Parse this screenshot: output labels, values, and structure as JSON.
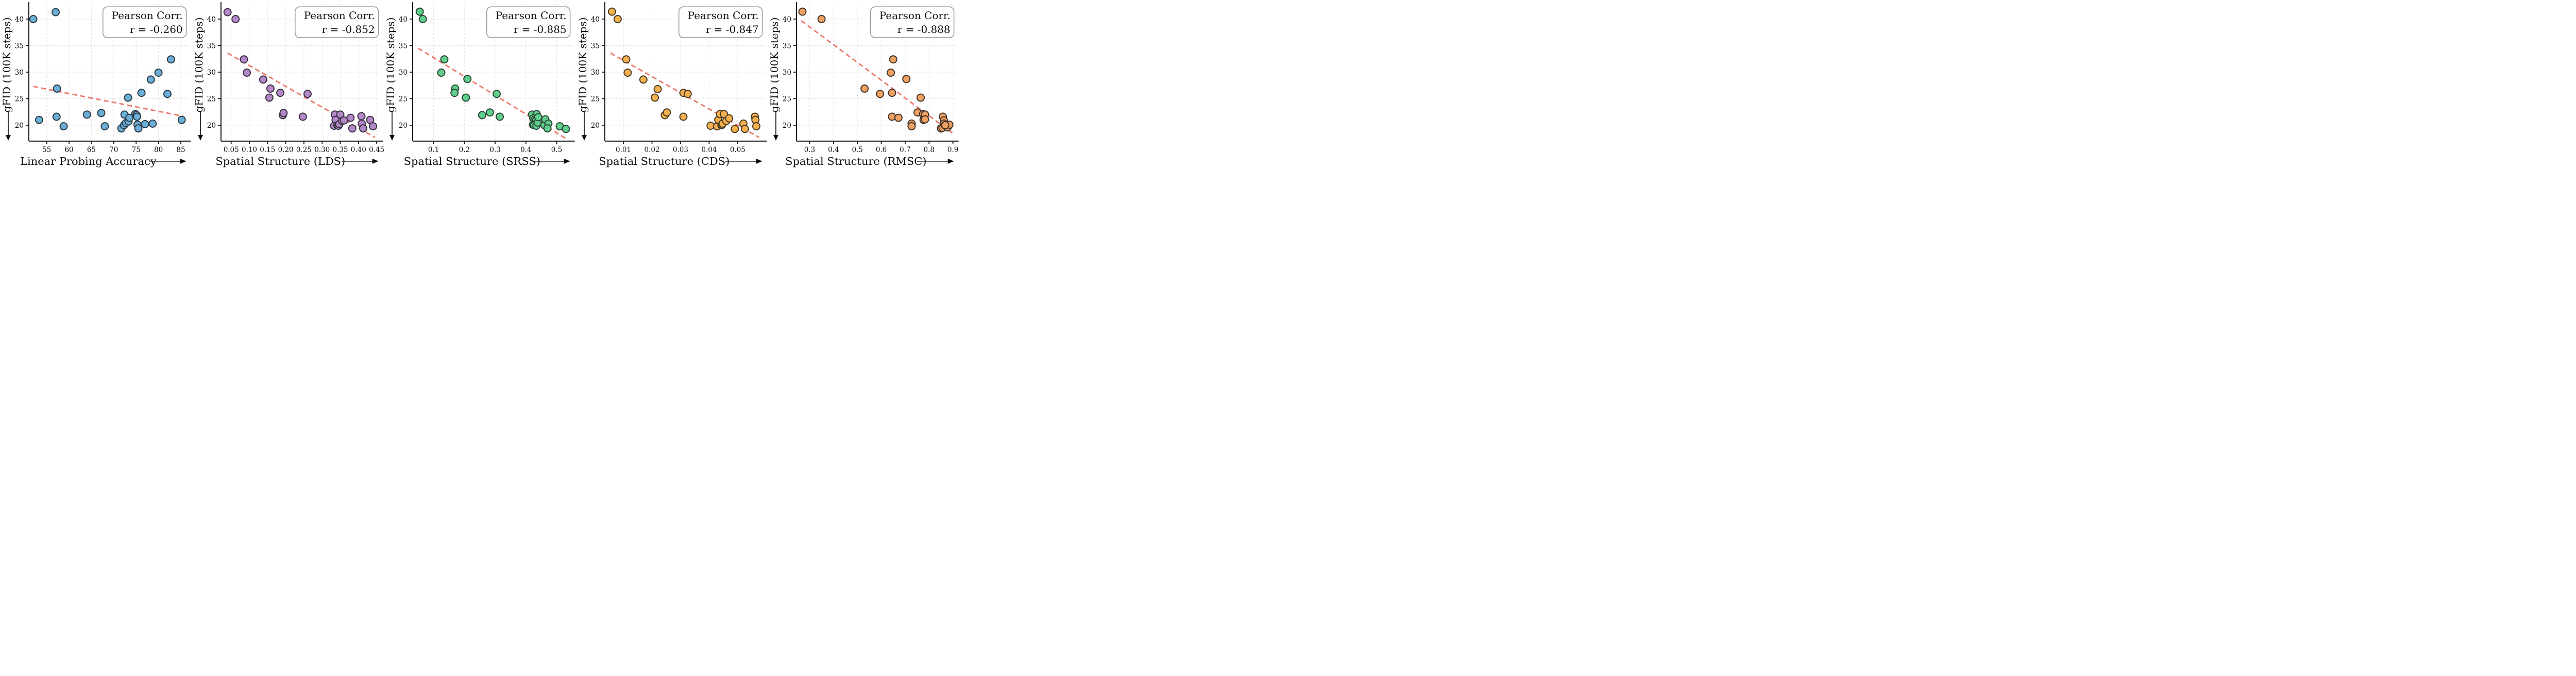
{
  "figure": {
    "description": "Five scatter panels correlating gFID (100K steps) with representation metrics",
    "trend_color": "#ED796B",
    "grid_color": "#E2E2E2"
  },
  "chart_data": [
    {
      "type": "scatter",
      "key": "linear-probing",
      "xlabel": "Linear Probing Accuracy",
      "ylabel": "gFID (100K steps)",
      "annotation": {
        "line1": "Pearson Corr.",
        "line2": "r = -0.260",
        "r": -0.26
      },
      "x_ticks": [
        55,
        60,
        65,
        70,
        75,
        80,
        85
      ],
      "x_tick_labels": [
        "55",
        "60",
        "65",
        "70",
        "75",
        "80",
        "85"
      ],
      "y_ticks": [
        20,
        25,
        30,
        35,
        40
      ],
      "y_tick_labels": [
        "20",
        "25",
        "30",
        "35",
        "40"
      ],
      "xlim": [
        51,
        86.8
      ],
      "ylim": [
        17,
        42.8
      ],
      "grid": true,
      "legend_position": "upper right",
      "marker_color": "#6BAED6",
      "marker_edge": "#2B3A45",
      "trend": {
        "x1": 52.0,
        "y1": 27.3,
        "x2": 85.5,
        "y2": 21.7,
        "color": "#ED796B"
      },
      "points": [
        [
          52.0,
          40.0
        ],
        [
          57.0,
          41.3
        ],
        [
          53.3,
          21.0
        ],
        [
          57.3,
          26.9
        ],
        [
          57.2,
          21.6
        ],
        [
          58.8,
          19.8
        ],
        [
          64.0,
          22.0
        ],
        [
          67.2,
          22.3
        ],
        [
          68.0,
          19.8
        ],
        [
          71.7,
          19.4
        ],
        [
          72.3,
          20.0
        ],
        [
          72.4,
          22.0
        ],
        [
          72.7,
          20.4
        ],
        [
          73.2,
          25.2
        ],
        [
          73.3,
          20.7
        ],
        [
          73.5,
          21.4
        ],
        [
          74.8,
          22.1
        ],
        [
          75.1,
          21.9
        ],
        [
          75.2,
          21.6
        ],
        [
          75.3,
          20.1
        ],
        [
          75.5,
          19.4
        ],
        [
          76.2,
          26.1
        ],
        [
          77.0,
          20.2
        ],
        [
          78.3,
          28.6
        ],
        [
          78.7,
          20.3
        ],
        [
          80.0,
          29.9
        ],
        [
          82.0,
          25.9
        ],
        [
          82.8,
          32.4
        ],
        [
          85.2,
          21.0
        ]
      ]
    },
    {
      "type": "scatter",
      "key": "lds",
      "xlabel": "Spatial Structure (LDS)",
      "ylabel": "gFID (100K steps)",
      "annotation": {
        "line1": "Pearson Corr.",
        "line2": "r = -0.852",
        "r": -0.852
      },
      "x_ticks": [
        0.05,
        0.1,
        0.15,
        0.2,
        0.25,
        0.3,
        0.35,
        0.4,
        0.45
      ],
      "x_tick_labels": [
        "0.05",
        "0.10",
        "0.15",
        "0.20",
        "0.25",
        "0.30",
        "0.35",
        "0.40",
        "0.45"
      ],
      "y_ticks": [
        20,
        25,
        30,
        35,
        40
      ],
      "y_tick_labels": [
        "20",
        "25",
        "30",
        "35",
        "40"
      ],
      "xlim": [
        0.022,
        0.462
      ],
      "ylim": [
        17,
        42.8
      ],
      "grid": true,
      "legend_position": "upper right",
      "marker_color": "#B388C9",
      "marker_edge": "#39303F",
      "trend": {
        "x1": 0.04,
        "y1": 33.6,
        "x2": 0.445,
        "y2": 17.7,
        "color": "#ED796B"
      },
      "points": [
        [
          0.04,
          41.3
        ],
        [
          0.062,
          40.0
        ],
        [
          0.085,
          32.4
        ],
        [
          0.093,
          29.9
        ],
        [
          0.138,
          28.6
        ],
        [
          0.155,
          25.2
        ],
        [
          0.158,
          26.9
        ],
        [
          0.185,
          26.1
        ],
        [
          0.192,
          21.9
        ],
        [
          0.194,
          22.3
        ],
        [
          0.247,
          21.6
        ],
        [
          0.26,
          25.9
        ],
        [
          0.333,
          19.9
        ],
        [
          0.335,
          22.0
        ],
        [
          0.337,
          21.0
        ],
        [
          0.342,
          20.0
        ],
        [
          0.345,
          19.9
        ],
        [
          0.347,
          20.2
        ],
        [
          0.35,
          22.0
        ],
        [
          0.355,
          20.8
        ],
        [
          0.36,
          20.9
        ],
        [
          0.378,
          21.4
        ],
        [
          0.383,
          19.4
        ],
        [
          0.408,
          21.7
        ],
        [
          0.409,
          20.3
        ],
        [
          0.413,
          19.4
        ],
        [
          0.432,
          21.0
        ],
        [
          0.44,
          19.8
        ]
      ]
    },
    {
      "type": "scatter",
      "key": "srss",
      "xlabel": "Spatial Structure (SRSS)",
      "ylabel": "gFID (100K steps)",
      "annotation": {
        "line1": "Pearson Corr.",
        "line2": "r = -0.885",
        "r": -0.885
      },
      "x_ticks": [
        0.1,
        0.2,
        0.3,
        0.4,
        0.5
      ],
      "x_tick_labels": [
        "0.1",
        "0.2",
        "0.3",
        "0.4",
        "0.5"
      ],
      "y_ticks": [
        20,
        25,
        30,
        35,
        40
      ],
      "y_tick_labels": [
        "20",
        "25",
        "30",
        "35",
        "40"
      ],
      "xlim": [
        0.032,
        0.552
      ],
      "ylim": [
        17,
        42.8
      ],
      "grid": true,
      "legend_position": "upper right",
      "marker_color": "#5FD08C",
      "marker_edge": "#2C4434",
      "trend": {
        "x1": 0.05,
        "y1": 34.5,
        "x2": 0.535,
        "y2": 17.3,
        "color": "#ED796B"
      },
      "points": [
        [
          0.055,
          41.4
        ],
        [
          0.065,
          40.0
        ],
        [
          0.135,
          32.4
        ],
        [
          0.125,
          29.9
        ],
        [
          0.21,
          28.7
        ],
        [
          0.17,
          26.9
        ],
        [
          0.168,
          26.1
        ],
        [
          0.205,
          25.2
        ],
        [
          0.305,
          25.9
        ],
        [
          0.258,
          21.9
        ],
        [
          0.283,
          22.4
        ],
        [
          0.315,
          21.6
        ],
        [
          0.42,
          22.0
        ],
        [
          0.435,
          22.1
        ],
        [
          0.424,
          21.3
        ],
        [
          0.428,
          21.0
        ],
        [
          0.432,
          20.8
        ],
        [
          0.423,
          20.1
        ],
        [
          0.427,
          20.0
        ],
        [
          0.434,
          19.9
        ],
        [
          0.438,
          20.5
        ],
        [
          0.44,
          21.5
        ],
        [
          0.46,
          20.0
        ],
        [
          0.463,
          21.1
        ],
        [
          0.473,
          20.3
        ],
        [
          0.47,
          19.4
        ],
        [
          0.51,
          19.8
        ],
        [
          0.53,
          19.3
        ]
      ]
    },
    {
      "type": "scatter",
      "key": "cds",
      "xlabel": "Spatial Structure (CDS)",
      "ylabel": "gFID (100K steps)",
      "annotation": {
        "line1": "Pearson Corr.",
        "line2": "r = -0.847",
        "r": -0.847
      },
      "x_ticks": [
        0.01,
        0.02,
        0.03,
        0.04,
        0.05
      ],
      "x_tick_labels": [
        "0.01",
        "0.02",
        "0.03",
        "0.04",
        "0.05"
      ],
      "y_ticks": [
        20,
        25,
        30,
        35,
        40
      ],
      "y_tick_labels": [
        "20",
        "25",
        "30",
        "35",
        "40"
      ],
      "xlim": [
        0.0035,
        0.0595
      ],
      "ylim": [
        17,
        42.8
      ],
      "grid": true,
      "legend_position": "upper right",
      "marker_color": "#F5B04E",
      "marker_edge": "#463A25",
      "trend": {
        "x1": 0.0055,
        "y1": 33.6,
        "x2": 0.0575,
        "y2": 17.7,
        "color": "#ED796B"
      },
      "points": [
        [
          0.006,
          41.4
        ],
        [
          0.008,
          40.0
        ],
        [
          0.011,
          32.4
        ],
        [
          0.0115,
          29.9
        ],
        [
          0.017,
          28.6
        ],
        [
          0.022,
          26.8
        ],
        [
          0.021,
          25.2
        ],
        [
          0.031,
          26.1
        ],
        [
          0.0325,
          25.9
        ],
        [
          0.0245,
          21.9
        ],
        [
          0.0252,
          22.4
        ],
        [
          0.031,
          21.6
        ],
        [
          0.0405,
          19.9
        ],
        [
          0.0428,
          19.8
        ],
        [
          0.0432,
          21.0
        ],
        [
          0.0438,
          22.1
        ],
        [
          0.0443,
          20.0
        ],
        [
          0.0445,
          20.1
        ],
        [
          0.0447,
          20.3
        ],
        [
          0.0452,
          22.1
        ],
        [
          0.046,
          20.8
        ],
        [
          0.047,
          21.3
        ],
        [
          0.049,
          19.3
        ],
        [
          0.052,
          20.3
        ],
        [
          0.0525,
          19.3
        ],
        [
          0.056,
          21.6
        ],
        [
          0.0562,
          21.0
        ],
        [
          0.0565,
          19.8
        ]
      ]
    },
    {
      "type": "scatter",
      "key": "rmsc",
      "xlabel": "Spatial Structure (RMSC)",
      "ylabel": "gFID (100K steps)",
      "annotation": {
        "line1": "Pearson Corr.",
        "line2": "r = -0.888",
        "r": -0.888
      },
      "x_ticks": [
        0.3,
        0.4,
        0.5,
        0.6,
        0.7,
        0.8,
        0.9
      ],
      "x_tick_labels": [
        "0.3",
        "0.4",
        "0.5",
        "0.6",
        "0.7",
        "0.8",
        "0.9"
      ],
      "y_ticks": [
        20,
        25,
        30,
        35,
        40
      ],
      "y_tick_labels": [
        "20",
        "25",
        "30",
        "35",
        "40"
      ],
      "xlim": [
        0.245,
        0.915
      ],
      "ylim": [
        17,
        42.8
      ],
      "grid": true,
      "legend_position": "upper right",
      "marker_color": "#F0A263",
      "marker_edge": "#423329",
      "trend": {
        "x1": 0.265,
        "y1": 39.7,
        "x2": 0.898,
        "y2": 18.5,
        "color": "#ED796B"
      },
      "points": [
        [
          0.27,
          41.4
        ],
        [
          0.35,
          40.0
        ],
        [
          0.53,
          26.9
        ],
        [
          0.595,
          25.9
        ],
        [
          0.64,
          29.9
        ],
        [
          0.65,
          32.4
        ],
        [
          0.645,
          26.1
        ],
        [
          0.705,
          28.7
        ],
        [
          0.645,
          21.6
        ],
        [
          0.672,
          21.4
        ],
        [
          0.727,
          20.3
        ],
        [
          0.727,
          19.8
        ],
        [
          0.752,
          22.4
        ],
        [
          0.765,
          25.2
        ],
        [
          0.775,
          22.1
        ],
        [
          0.783,
          22.0
        ],
        [
          0.777,
          21.0
        ],
        [
          0.783,
          21.1
        ],
        [
          0.85,
          19.4
        ],
        [
          0.856,
          19.5
        ],
        [
          0.858,
          21.6
        ],
        [
          0.862,
          20.9
        ],
        [
          0.862,
          20.3
        ],
        [
          0.866,
          20.0
        ],
        [
          0.87,
          19.9
        ],
        [
          0.878,
          19.6
        ],
        [
          0.885,
          20.1
        ],
        [
          0.868,
          20.0
        ]
      ]
    }
  ]
}
